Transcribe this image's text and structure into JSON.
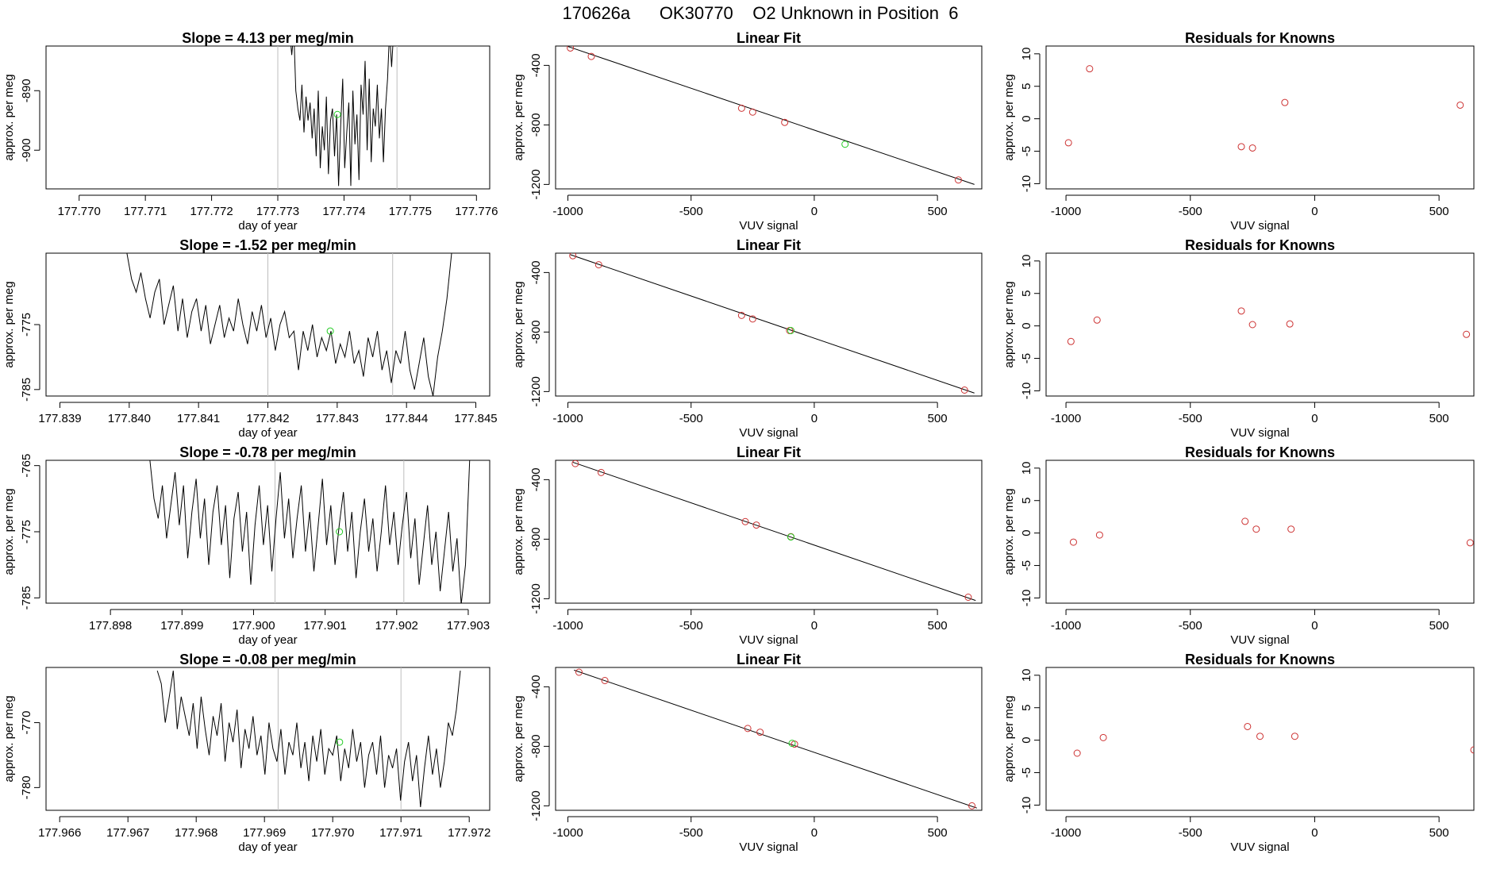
{
  "page_title": "170626a      OK30770    O2 Unknown in Position  6",
  "colors": {
    "line": "#000000",
    "known_point": "#cd3333",
    "unknown_point": "#22cc22",
    "guide": "#bebebe"
  },
  "chart_data": [
    {
      "type": "line",
      "row": 0,
      "panel": "trace",
      "title": "Slope =  4.13  per meg/min",
      "xlabel": "day of year",
      "ylabel": "approx. per meg",
      "xlim": [
        177.7695,
        177.7762
      ],
      "ylim": [
        -906.5,
        -882.5
      ],
      "xticks": [
        177.77,
        177.771,
        177.772,
        177.773,
        177.774,
        177.775,
        177.776
      ],
      "xtick_labels": [
        "177.770",
        "177.771",
        "177.772",
        "177.773",
        "177.774",
        "177.775",
        "177.776"
      ],
      "yticks": [
        -900,
        -890
      ],
      "vlines": [
        177.773,
        177.7748
      ],
      "unknown_point": [
        177.7739,
        -894
      ],
      "trace_y": [
        -880,
        -884,
        -880,
        -890,
        -893,
        -895,
        -889,
        -897,
        -891,
        -895,
        -892,
        -898,
        -893,
        -901,
        -890,
        -903,
        -896,
        -900,
        -891,
        -904,
        -895,
        -893,
        -901,
        -894,
        -906,
        -896,
        -888,
        -903,
        -897,
        -892,
        -906,
        -890,
        -899,
        -894,
        -905,
        -889,
        -894,
        -885,
        -900,
        -888,
        -902,
        -893,
        -896,
        -889,
        -898,
        -893,
        -902,
        -893,
        -888,
        -880,
        -886,
        -880,
        -878
      ],
      "trace_x_start": 177.77318,
      "trace_x_end": 177.77478
    },
    {
      "type": "scatter",
      "row": 0,
      "panel": "fit",
      "title": "Linear Fit",
      "xlabel": "VUV signal",
      "ylabel": "approx. per meg",
      "xlim": [
        -1050,
        680
      ],
      "ylim": [
        -1230,
        -270
      ],
      "xticks": [
        -1000,
        -500,
        0,
        500
      ],
      "yticks": [
        -1200,
        -800,
        -400
      ],
      "known": [
        [
          -990,
          -283
        ],
        [
          -905,
          -340
        ],
        [
          -295,
          -688
        ],
        [
          -250,
          -714
        ],
        [
          -120,
          -783
        ],
        [
          585,
          -1170
        ]
      ],
      "unknown": [
        [
          125,
          -930
        ]
      ],
      "fit_line": [
        [
          -1000,
          -273
        ],
        [
          650,
          -1200
        ]
      ]
    },
    {
      "type": "scatter",
      "row": 0,
      "panel": "residuals",
      "title": "Residuals for Knowns",
      "xlabel": "VUV signal",
      "ylabel": "approx. per meg",
      "xlim": [
        -1080,
        640
      ],
      "ylim": [
        -10.8,
        11.2
      ],
      "xticks": [
        -1000,
        -500,
        0,
        500
      ],
      "yticks": [
        -10,
        -5,
        0,
        5,
        10
      ],
      "points": [
        [
          -990,
          -3.7
        ],
        [
          -905,
          7.7
        ],
        [
          -295,
          -4.3
        ],
        [
          -250,
          -4.5
        ],
        [
          -120,
          2.5
        ],
        [
          585,
          2.1
        ]
      ]
    },
    {
      "type": "line",
      "row": 1,
      "panel": "trace",
      "title": "Slope =  -1.52  per meg/min",
      "xlabel": "day of year",
      "ylabel": "approx. per meg",
      "xlim": [
        177.8388,
        177.8452
      ],
      "ylim": [
        -786,
        -764
      ],
      "xticks": [
        177.839,
        177.84,
        177.841,
        177.842,
        177.843,
        177.844,
        177.845
      ],
      "xtick_labels": [
        "177.839",
        "177.840",
        "177.841",
        "177.842",
        "177.843",
        "177.844",
        "177.845"
      ],
      "yticks": [
        -785,
        -775
      ],
      "vlines": [
        177.842,
        177.8438
      ],
      "unknown_point": [
        177.8429,
        -776
      ],
      "trace_y": [
        -764,
        -764,
        -768,
        -770,
        -767,
        -771,
        -774,
        -770,
        -768,
        -775,
        -772,
        -769,
        -776,
        -771,
        -777,
        -773,
        -771,
        -776,
        -772,
        -778,
        -775,
        -772,
        -777,
        -774,
        -776,
        -771,
        -775,
        -778,
        -773,
        -776,
        -772,
        -777,
        -774,
        -779,
        -775,
        -773,
        -777,
        -776,
        -782,
        -776,
        -779,
        -775,
        -780,
        -777,
        -779,
        -776,
        -781,
        -778,
        -780,
        -776,
        -781,
        -779,
        -783,
        -777,
        -780,
        -776,
        -782,
        -779,
        -784,
        -779,
        -781,
        -776,
        -782,
        -785,
        -781,
        -777,
        -783,
        -786,
        -780,
        -776,
        -771,
        -764
      ],
      "trace_x_start": 177.8399,
      "trace_x_end": 177.84465
    },
    {
      "type": "scatter",
      "row": 1,
      "panel": "fit",
      "title": "Linear Fit",
      "xlabel": "VUV signal",
      "ylabel": "approx. per meg",
      "xlim": [
        -1050,
        680
      ],
      "ylim": [
        -1230,
        -270
      ],
      "xticks": [
        -1000,
        -500,
        0,
        500
      ],
      "yticks": [
        -1200,
        -800,
        -400
      ],
      "known": [
        [
          -980,
          -287
        ],
        [
          -875,
          -348
        ],
        [
          -295,
          -688
        ],
        [
          -250,
          -712
        ],
        [
          -100,
          -790
        ],
        [
          610,
          -1190
        ]
      ],
      "unknown": [
        [
          -95,
          -790
        ]
      ],
      "fit_line": [
        [
          -990,
          -280
        ],
        [
          650,
          -1210
        ]
      ]
    },
    {
      "type": "scatter",
      "row": 1,
      "panel": "residuals",
      "title": "Residuals for Knowns",
      "xlabel": "VUV signal",
      "ylabel": "approx. per meg",
      "xlim": [
        -1080,
        640
      ],
      "ylim": [
        -10.8,
        11.2
      ],
      "xticks": [
        -1000,
        -500,
        0,
        500
      ],
      "yticks": [
        -10,
        -5,
        0,
        5,
        10
      ],
      "points": [
        [
          -980,
          -2.4
        ],
        [
          -875,
          0.9
        ],
        [
          -295,
          2.3
        ],
        [
          -250,
          0.2
        ],
        [
          -100,
          0.3
        ],
        [
          610,
          -1.3
        ]
      ]
    },
    {
      "type": "line",
      "row": 2,
      "panel": "trace",
      "title": "Slope =  -0.78  per meg/min",
      "xlabel": "day of year",
      "ylabel": "approx. per meg",
      "xlim": [
        177.8971,
        177.9033
      ],
      "ylim": [
        -785.8,
        -764.2
      ],
      "xticks": [
        177.898,
        177.899,
        177.9,
        177.901,
        177.902,
        177.903
      ],
      "xtick_labels": [
        "177.898",
        "177.899",
        "177.900",
        "177.901",
        "177.902",
        "177.903"
      ],
      "yticks": [
        -785,
        -775,
        -765
      ],
      "vlines": [
        177.9003,
        177.9021
      ],
      "unknown_point": [
        177.9012,
        -775
      ],
      "trace_y": [
        -764,
        -770,
        -773,
        -768,
        -776,
        -771,
        -766,
        -774,
        -768,
        -779,
        -772,
        -767,
        -776,
        -770,
        -780,
        -772,
        -768,
        -777,
        -771,
        -782,
        -773,
        -769,
        -778,
        -772,
        -783,
        -774,
        -768,
        -777,
        -771,
        -781,
        -773,
        -766,
        -776,
        -770,
        -779,
        -773,
        -768,
        -778,
        -772,
        -781,
        -774,
        -767,
        -777,
        -771,
        -780,
        -774,
        -769,
        -778,
        -772,
        -782,
        -775,
        -770,
        -778,
        -773,
        -781,
        -775,
        -768,
        -777,
        -772,
        -780,
        -774,
        -769,
        -779,
        -773,
        -783,
        -777,
        -771,
        -780,
        -775,
        -784,
        -778,
        -772,
        -781,
        -776,
        -786,
        -780,
        -764
      ],
      "trace_x_start": 177.89855,
      "trace_x_end": 177.90302
    },
    {
      "type": "scatter",
      "row": 2,
      "panel": "fit",
      "title": "Linear Fit",
      "xlabel": "VUV signal",
      "ylabel": "approx. per meg",
      "xlim": [
        -1050,
        680
      ],
      "ylim": [
        -1230,
        -270
      ],
      "xticks": [
        -1000,
        -500,
        0,
        500
      ],
      "yticks": [
        -1200,
        -800,
        -400
      ],
      "known": [
        [
          -970,
          -292
        ],
        [
          -865,
          -352
        ],
        [
          -280,
          -682
        ],
        [
          -235,
          -705
        ],
        [
          -95,
          -783
        ],
        [
          625,
          -1190
        ]
      ],
      "unknown": [
        [
          -95,
          -785
        ]
      ],
      "fit_line": [
        [
          -980,
          -283
        ],
        [
          655,
          -1212
        ]
      ]
    },
    {
      "type": "scatter",
      "row": 2,
      "panel": "residuals",
      "title": "Residuals for Knowns",
      "xlabel": "VUV signal",
      "ylabel": "approx. per meg",
      "xlim": [
        -1080,
        640
      ],
      "ylim": [
        -10.8,
        11.2
      ],
      "xticks": [
        -1000,
        -500,
        0,
        500
      ],
      "yticks": [
        -10,
        -5,
        0,
        5,
        10
      ],
      "points": [
        [
          -970,
          -1.4
        ],
        [
          -865,
          -0.3
        ],
        [
          -280,
          1.8
        ],
        [
          -235,
          0.6
        ],
        [
          -95,
          0.6
        ],
        [
          625,
          -1.5
        ]
      ]
    },
    {
      "type": "line",
      "row": 3,
      "panel": "trace",
      "title": "Slope =  -0.08  per meg/min",
      "xlabel": "day of year",
      "ylabel": "approx. per meg",
      "xlim": [
        177.9658,
        177.9723
      ],
      "ylim": [
        -783.5,
        -761.5
      ],
      "xticks": [
        177.966,
        177.967,
        177.968,
        177.969,
        177.97,
        177.971,
        177.972
      ],
      "xtick_labels": [
        "177.966",
        "177.967",
        "177.968",
        "177.969",
        "177.970",
        "177.971",
        "177.972"
      ],
      "yticks": [
        -780,
        -770
      ],
      "vlines": [
        177.9692,
        177.971
      ],
      "unknown_point": [
        177.9701,
        -773
      ],
      "trace_y": [
        -762,
        -764,
        -770,
        -766,
        -762,
        -771,
        -766,
        -769,
        -772,
        -767,
        -774,
        -766,
        -771,
        -775,
        -769,
        -772,
        -767,
        -776,
        -770,
        -773,
        -768,
        -777,
        -771,
        -774,
        -769,
        -775,
        -772,
        -778,
        -770,
        -774,
        -776,
        -771,
        -778,
        -773,
        -775,
        -770,
        -777,
        -773,
        -779,
        -772,
        -776,
        -771,
        -778,
        -774,
        -775,
        -772,
        -779,
        -774,
        -777,
        -771,
        -776,
        -773,
        -780,
        -775,
        -773,
        -778,
        -772,
        -780,
        -775,
        -777,
        -774,
        -782,
        -776,
        -773,
        -779,
        -775,
        -783,
        -777,
        -772,
        -778,
        -774,
        -780,
        -776,
        -770,
        -772,
        -768,
        -762
      ],
      "trace_x_start": 177.96743,
      "trace_x_end": 177.97187
    },
    {
      "type": "scatter",
      "row": 3,
      "panel": "fit",
      "title": "Linear Fit",
      "xlabel": "VUV signal",
      "ylabel": "approx. per meg",
      "xlim": [
        -1050,
        680
      ],
      "ylim": [
        -1230,
        -270
      ],
      "xticks": [
        -1000,
        -500,
        0,
        500
      ],
      "yticks": [
        -1200,
        -800,
        -400
      ],
      "known": [
        [
          -955,
          -302
        ],
        [
          -850,
          -358
        ],
        [
          -270,
          -680
        ],
        [
          -220,
          -705
        ],
        [
          -80,
          -785
        ],
        [
          640,
          -1200
        ]
      ],
      "unknown": [
        [
          -90,
          -780
        ]
      ],
      "fit_line": [
        [
          -975,
          -288
        ],
        [
          660,
          -1215
        ]
      ]
    },
    {
      "type": "scatter",
      "row": 3,
      "panel": "residuals",
      "title": "Residuals for Knowns",
      "xlabel": "VUV signal",
      "ylabel": "approx. per meg",
      "xlim": [
        -1080,
        640
      ],
      "ylim": [
        -10.8,
        11.2
      ],
      "xticks": [
        -1000,
        -500,
        0,
        500
      ],
      "yticks": [
        -10,
        -5,
        0,
        5,
        10
      ],
      "points": [
        [
          -955,
          -2.0
        ],
        [
          -850,
          0.4
        ],
        [
          -270,
          2.1
        ],
        [
          -220,
          0.6
        ],
        [
          -80,
          0.6
        ],
        [
          640,
          -1.5
        ]
      ]
    }
  ]
}
